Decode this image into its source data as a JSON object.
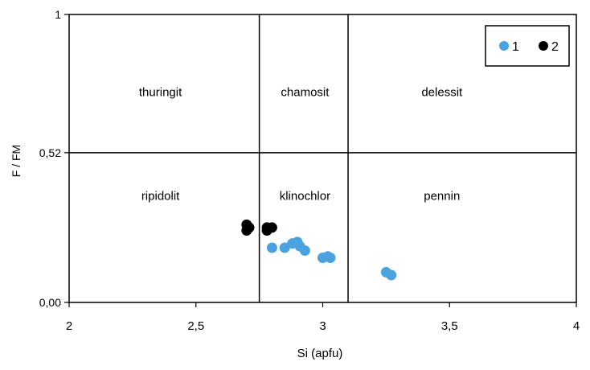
{
  "chart_data": {
    "type": "scatter",
    "title": "",
    "xlabel": "Si  (apfu)",
    "ylabel": "F / FM",
    "xlim": [
      2,
      4
    ],
    "ylim": [
      0,
      1
    ],
    "x_ticks": [
      {
        "value": 2,
        "label": "2"
      },
      {
        "value": 2.5,
        "label": "2,5"
      },
      {
        "value": 3,
        "label": "3"
      },
      {
        "value": 3.5,
        "label": "3,5"
      },
      {
        "value": 4,
        "label": "4"
      }
    ],
    "y_ticks": [
      {
        "value": 0,
        "label": "0,00"
      },
      {
        "value": 0.52,
        "label": "0,52"
      },
      {
        "value": 1,
        "label": "1"
      }
    ],
    "grid": false,
    "legend_position": "top-right",
    "field_boundaries": {
      "vertical_x": [
        2.75,
        3.1
      ],
      "horizontal_y": [
        0.52
      ]
    },
    "regions": [
      {
        "label": "thuringit",
        "x": 2.36,
        "y": 0.73
      },
      {
        "label": "chamosit",
        "x": 2.93,
        "y": 0.73
      },
      {
        "label": "delessit",
        "x": 3.47,
        "y": 0.73
      },
      {
        "label": "ripidolit",
        "x": 2.36,
        "y": 0.37
      },
      {
        "label": "klinochlor",
        "x": 2.93,
        "y": 0.37
      },
      {
        "label": "pennin",
        "x": 3.47,
        "y": 0.37
      }
    ],
    "series": [
      {
        "name": "1",
        "color": "#4aa3df",
        "points": [
          [
            2.8,
            0.19
          ],
          [
            2.85,
            0.19
          ],
          [
            2.88,
            0.205
          ],
          [
            2.9,
            0.21
          ],
          [
            2.91,
            0.195
          ],
          [
            2.93,
            0.18
          ],
          [
            3.0,
            0.155
          ],
          [
            3.02,
            0.16
          ],
          [
            3.03,
            0.155
          ],
          [
            3.25,
            0.105
          ],
          [
            3.27,
            0.095
          ]
        ]
      },
      {
        "name": "2",
        "color": "#000000",
        "points": [
          [
            2.7,
            0.27
          ],
          [
            2.7,
            0.25
          ],
          [
            2.71,
            0.26
          ],
          [
            2.78,
            0.26
          ],
          [
            2.78,
            0.25
          ],
          [
            2.8,
            0.26
          ]
        ]
      }
    ]
  }
}
